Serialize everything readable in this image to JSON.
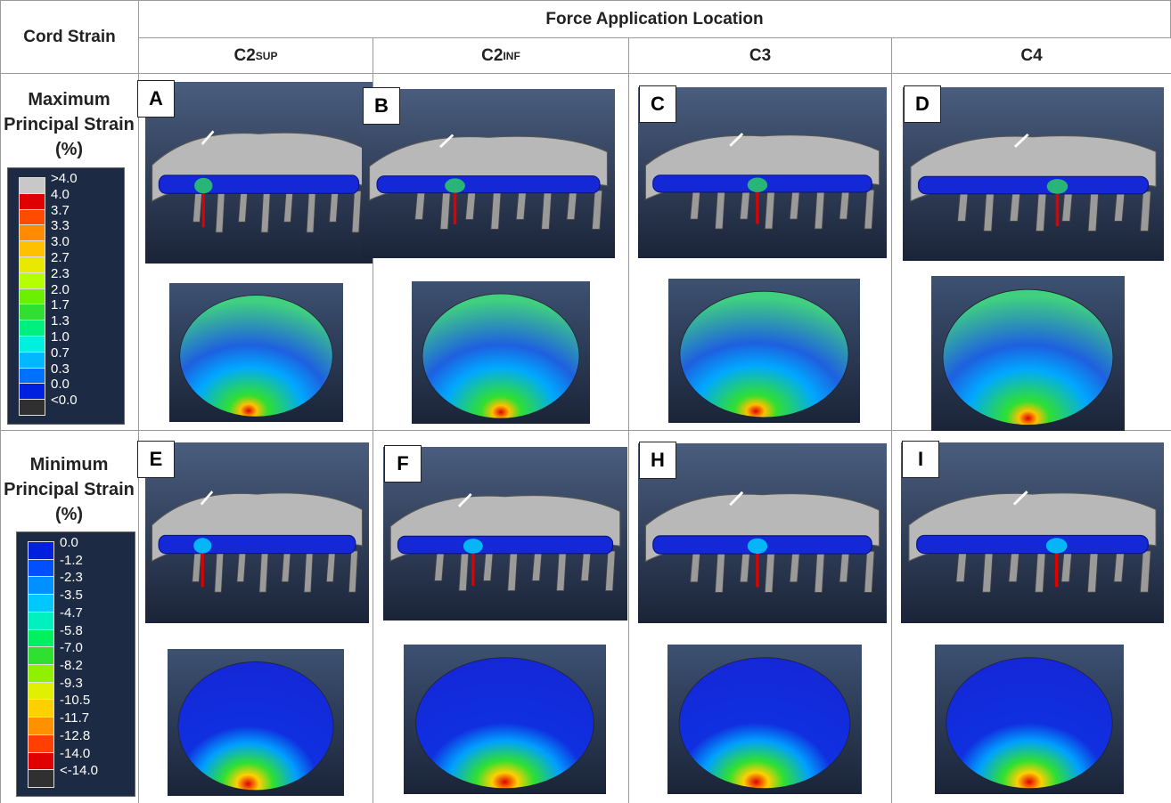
{
  "header": {
    "corner": "Cord Strain",
    "group": "Force Application Location",
    "columns": [
      {
        "label": "C2",
        "subscript": "SUP"
      },
      {
        "label": "C2",
        "subscript": "INF"
      },
      {
        "label": "C3"
      },
      {
        "label": "C4"
      }
    ]
  },
  "rows": [
    {
      "label": "Maximum Principal Strain (%)",
      "legend": [
        ">4.0",
        "4.0",
        "3.7",
        "3.3",
        "3.0",
        "2.7",
        "2.3",
        "2.0",
        "1.7",
        "1.3",
        "1.0",
        "0.7",
        "0.3",
        "0.0",
        "<0.0"
      ],
      "panels": [
        "A",
        "B",
        "C",
        "D"
      ]
    },
    {
      "label": "Minimum Principal Strain (%)",
      "legend": [
        "0.0",
        "-1.2",
        "-2.3",
        "-3.5",
        "-4.7",
        "-5.8",
        "-7.0",
        "-8.2",
        "-9.3",
        "-10.5",
        "-11.7",
        "-12.8",
        "-14.0",
        "<-14.0"
      ],
      "panels": [
        "E",
        "F",
        "H",
        "I"
      ]
    }
  ]
}
